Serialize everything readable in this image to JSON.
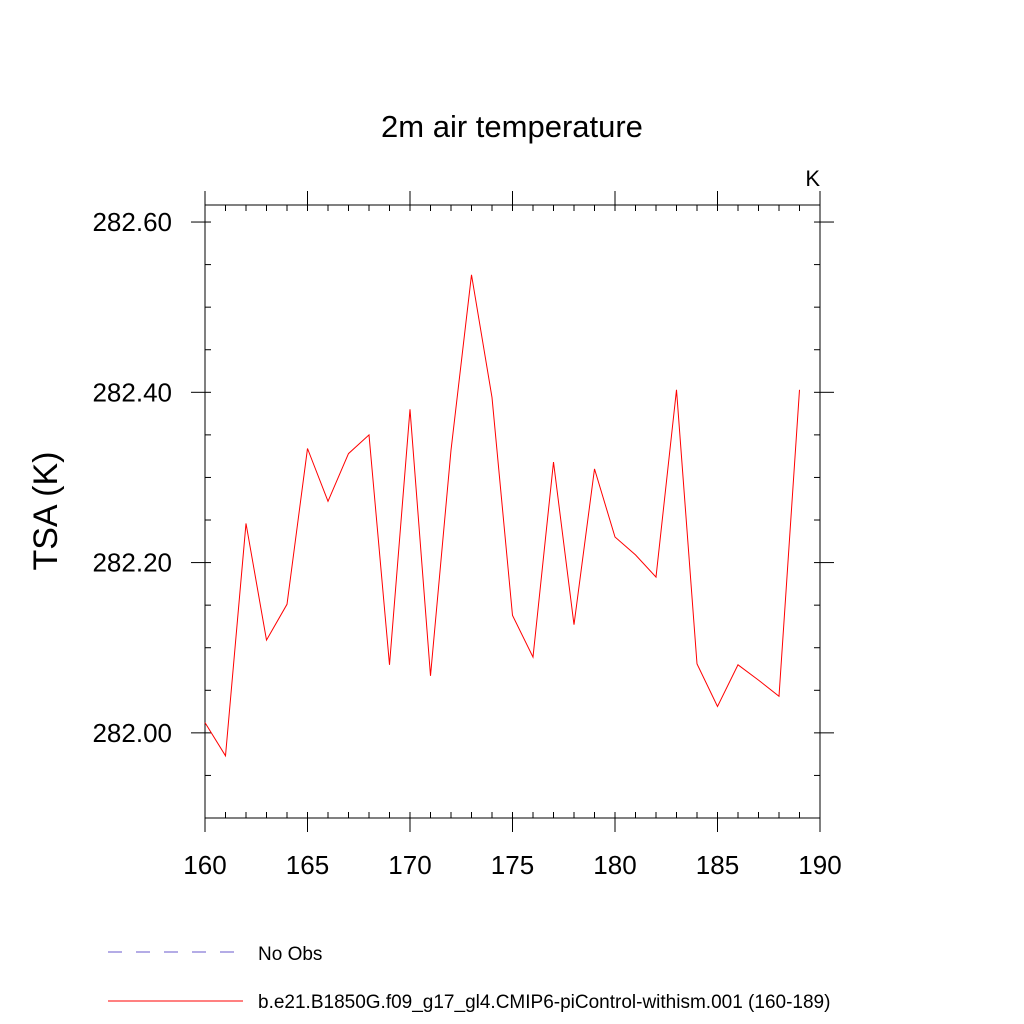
{
  "chart_data": {
    "type": "line",
    "title": "2m air temperature",
    "units_label": "K",
    "ylabel": "TSA  (K)",
    "xlabel": "",
    "xlim": [
      160,
      190
    ],
    "ylim": [
      281.9,
      282.62
    ],
    "x_ticks": [
      160,
      165,
      170,
      175,
      180,
      185,
      190
    ],
    "x_tick_labels": [
      "160",
      "165",
      "170",
      "175",
      "180",
      "185",
      "190"
    ],
    "y_ticks": [
      282.0,
      282.2,
      282.4,
      282.6
    ],
    "y_tick_labels": [
      "282.00",
      "282.20",
      "282.40",
      "282.60"
    ],
    "x_minor_step": 1,
    "y_minor_step": 0.05,
    "grid": false,
    "legend_position": "bottom-left",
    "series": [
      {
        "name": "No Obs",
        "color": "#6a5acd",
        "dash": "dashed",
        "x": [],
        "values": []
      },
      {
        "name": "b.e21.B1850G.f09_g17_gl4.CMIP6-piControl-withism.001 (160-189)",
        "color": "#ff0000",
        "dash": "solid",
        "x": [
          160,
          161,
          162,
          163,
          164,
          165,
          166,
          167,
          168,
          169,
          170,
          171,
          172,
          173,
          174,
          175,
          176,
          177,
          178,
          179,
          180,
          181,
          182,
          183,
          184,
          185,
          186,
          187,
          188,
          189
        ],
        "values": [
          282.012,
          281.973,
          282.246,
          282.109,
          282.151,
          282.334,
          282.272,
          282.328,
          282.35,
          282.08,
          282.38,
          282.067,
          282.332,
          282.538,
          282.394,
          282.138,
          282.089,
          282.318,
          282.127,
          282.31,
          282.23,
          282.209,
          282.183,
          282.403,
          282.081,
          282.031,
          282.08,
          282.062,
          282.043,
          282.403
        ]
      }
    ]
  }
}
